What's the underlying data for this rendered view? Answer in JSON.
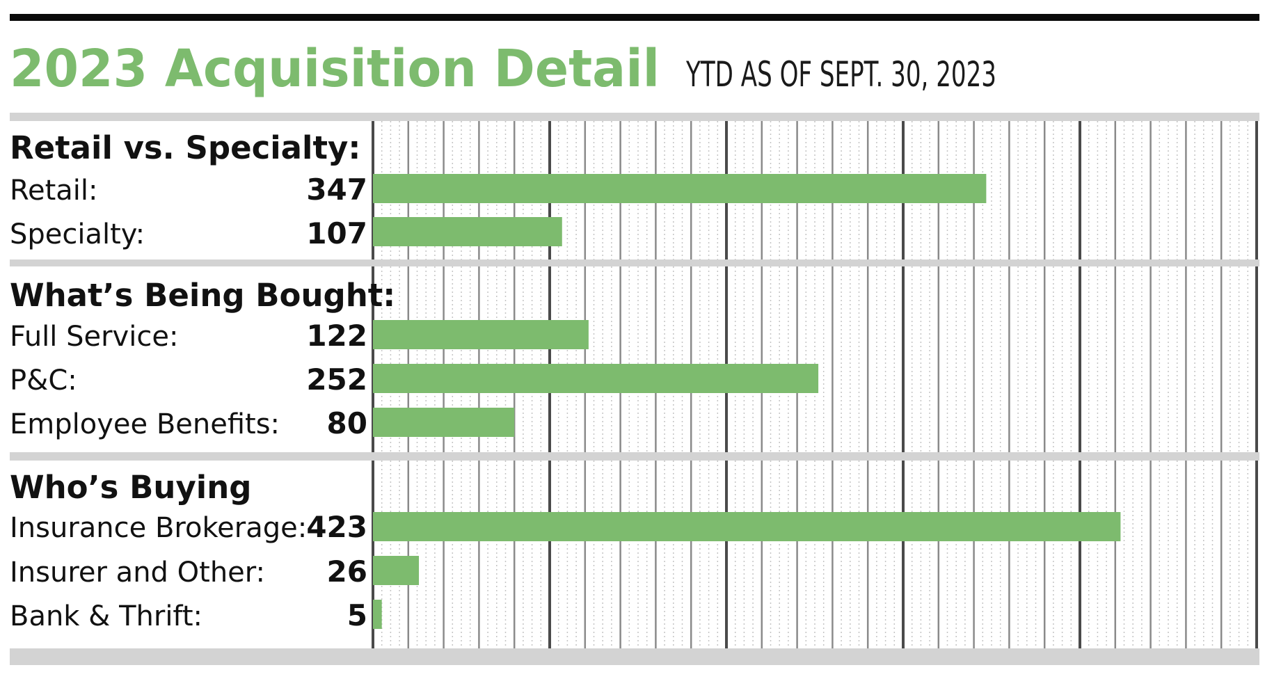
{
  "chart_data": {
    "type": "bar",
    "orientation": "horizontal",
    "title": "2023 Acquisition Detail",
    "subtitle": "YTD AS OF SEPT. 30, 2023",
    "xlim": [
      0,
      500
    ],
    "grid": true,
    "groups": [
      {
        "heading": "Retail vs. Specialty:",
        "categories": [
          "Retail:",
          "Specialty:"
        ],
        "values": [
          347,
          107
        ]
      },
      {
        "heading": "What’s Being Bought:",
        "categories": [
          "Full Service:",
          "P&C:",
          "Employee Benefits:"
        ],
        "values": [
          122,
          252,
          80
        ]
      },
      {
        "heading": "Who’s Buying",
        "categories": [
          "Insurance Brokerage:",
          "Insurer and Other:",
          "Bank & Thrift:"
        ],
        "values": [
          423,
          26,
          5
        ]
      }
    ]
  },
  "colors": {
    "title": "#7dbb6e",
    "bar": "#7dbb6e",
    "section_band": "#d3d3d3",
    "grid_major": "#4a4a4a",
    "grid_minor": "#8a8a8a",
    "grid_dotted": "#c4c4c4"
  }
}
